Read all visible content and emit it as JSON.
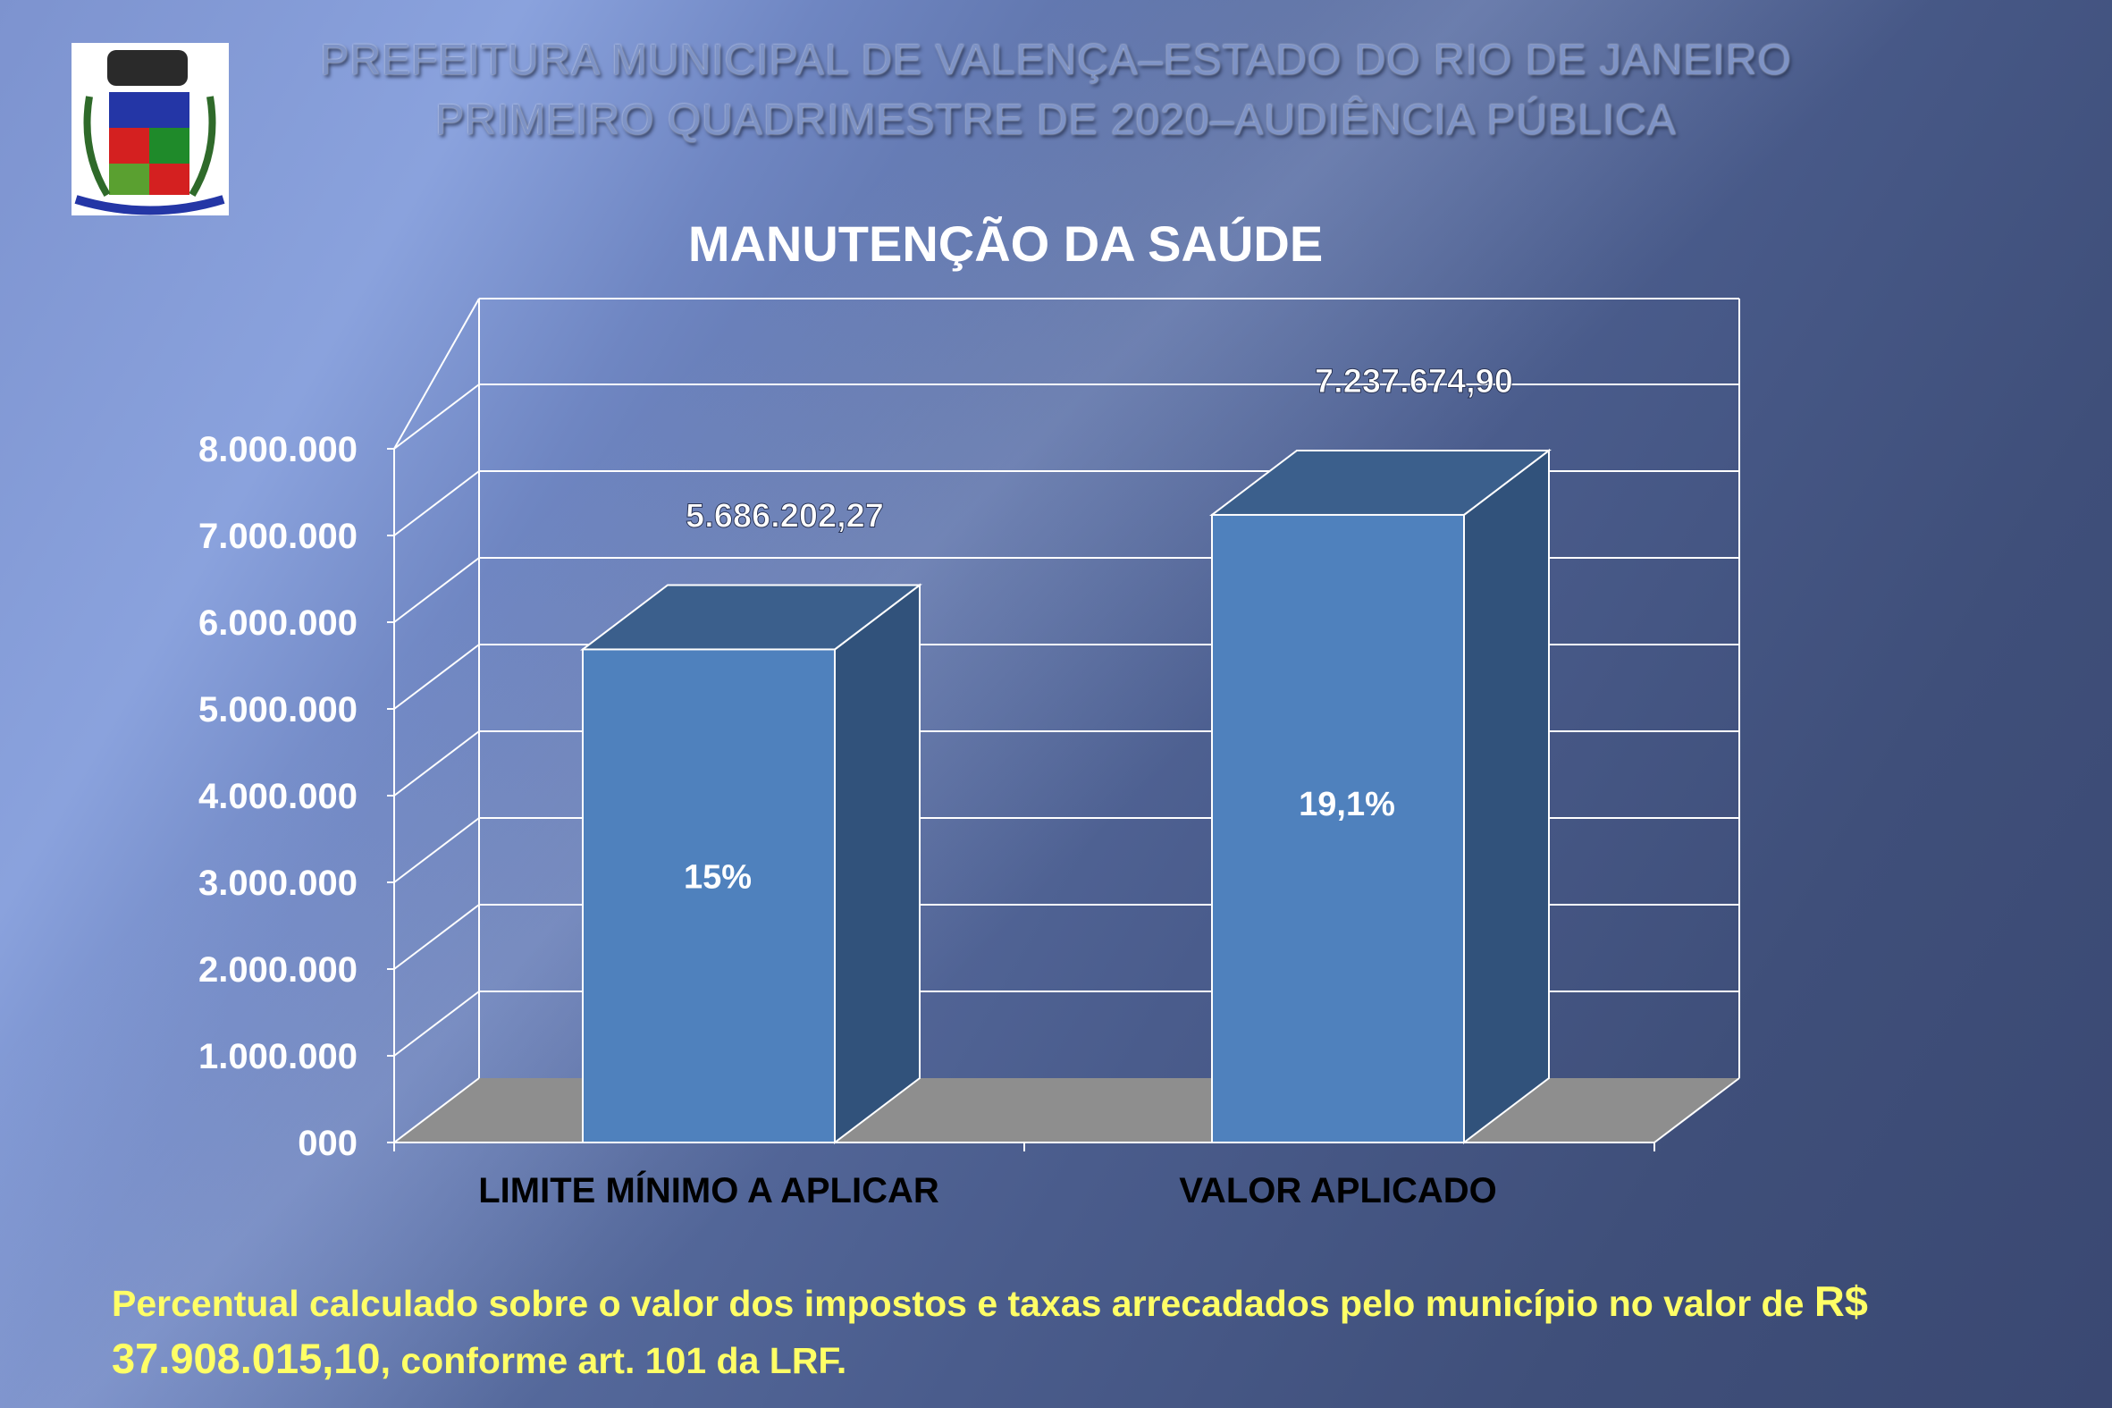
{
  "header": {
    "line1": "PREFEITURA MUNICIPAL DE VALENÇA–ESTADO DO RIO DE JANEIRO",
    "line2": "PRIMEIRO QUADRIMESTRE DE 2020–AUDIÊNCIA PÚBLICA"
  },
  "logo": {
    "name": "Brasão de Valença"
  },
  "footer": {
    "text_a": "Percentual calculado sobre o valor dos impostos e taxas arrecadados pelo município  no valor de ",
    "amount": "R$ 37.908.015,10",
    "text_b": ", conforme art. 101 da LRF."
  },
  "colors": {
    "bar_front": "#4f81bd",
    "bar_side": "#31527b",
    "bar_top": "#3b5f8c",
    "floor": "#8e8e8e",
    "footer": "#ffff66"
  },
  "chart_data": {
    "type": "bar",
    "title": "MANUTENÇÃO DA SAÚDE",
    "categories": [
      "LIMITE MÍNIMO A APLICAR",
      "VALOR APLICADO"
    ],
    "values": [
      5686202.27,
      7237674.9
    ],
    "value_labels": [
      "5.686.202,27",
      "7.237.674,90"
    ],
    "bar_labels": [
      "15%",
      "19,1%"
    ],
    "ylim": [
      0,
      8000000
    ],
    "yticks": [
      0,
      1000000,
      2000000,
      3000000,
      4000000,
      5000000,
      6000000,
      7000000,
      8000000
    ],
    "ytick_labels": [
      "000",
      "1.000.000",
      "2.000.000",
      "3.000.000",
      "4.000.000",
      "5.000.000",
      "6.000.000",
      "7.000.000",
      "8.000.000"
    ],
    "xlabel": "",
    "ylabel": "",
    "grid": true,
    "style": "3d"
  }
}
